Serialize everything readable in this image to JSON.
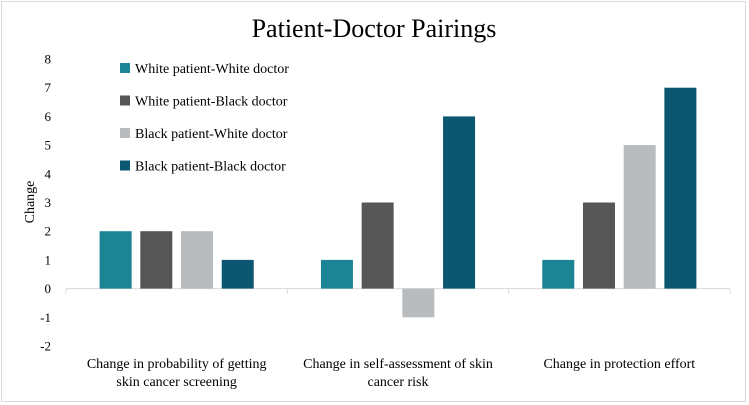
{
  "chart_data": {
    "type": "bar",
    "title": "Patient-Doctor Pairings",
    "xlabel": "",
    "ylabel": "Change",
    "ylim": [
      -2,
      8
    ],
    "yticks": [
      -2,
      -1,
      0,
      1,
      2,
      3,
      4,
      5,
      6,
      7,
      8
    ],
    "grid": false,
    "legend_position": "top-left",
    "categories": [
      [
        "Change in probability of getting",
        "skin cancer screening"
      ],
      [
        "Change in self-assessment of skin",
        "cancer risk"
      ],
      [
        "Change in protection effort"
      ]
    ],
    "series": [
      {
        "name": "White patient-White doctor",
        "color": "#1b8596",
        "values": [
          2,
          1,
          1
        ]
      },
      {
        "name": "White patient-Black doctor",
        "color": "#565656",
        "values": [
          2,
          3,
          3
        ]
      },
      {
        "name": "Black patient-White doctor",
        "color": "#b8bcbe",
        "values": [
          2,
          -1,
          5
        ]
      },
      {
        "name": "Black patient-Black doctor",
        "color": "#0b5670",
        "values": [
          1,
          6,
          7
        ]
      }
    ]
  }
}
